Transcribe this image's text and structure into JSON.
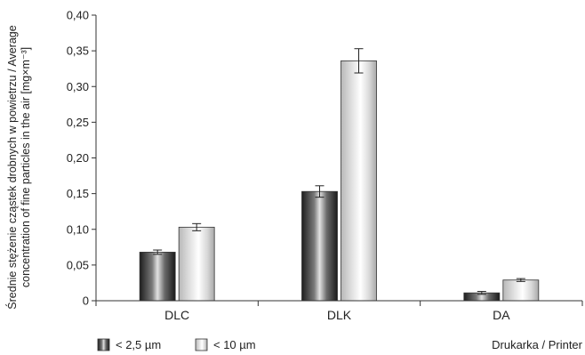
{
  "chart_data": {
    "type": "bar",
    "title": "",
    "categories": [
      "DLC",
      "DLK",
      "DA"
    ],
    "series": [
      {
        "name": "< 2,5 µm",
        "values": [
          0.068,
          0.153,
          0.011
        ],
        "error": [
          0.003,
          0.008,
          0.002
        ],
        "color": "#4a4a4a"
      },
      {
        "name": "< 10 µm",
        "values": [
          0.103,
          0.336,
          0.029
        ],
        "error": [
          0.005,
          0.017,
          0.002
        ],
        "color": "#c8c8c8"
      }
    ],
    "ylabel_line1": "Średnie stężenie cząstek drobnych w powietrzu / Average",
    "ylabel_line2": "concentration of fine particles in the air [mg×m⁻³]",
    "xlabel": "Drukarka / Printer",
    "ylim": [
      0,
      0.4
    ],
    "yticks": [
      "0",
      "0,05",
      "0,10",
      "0,15",
      "0,20",
      "0,25",
      "0,30",
      "0,35",
      "0,40"
    ],
    "ytick_values": [
      0,
      0.05,
      0.1,
      0.15,
      0.2,
      0.25,
      0.3,
      0.35,
      0.4
    ],
    "grid": false,
    "legend_position": "bottom-left"
  }
}
